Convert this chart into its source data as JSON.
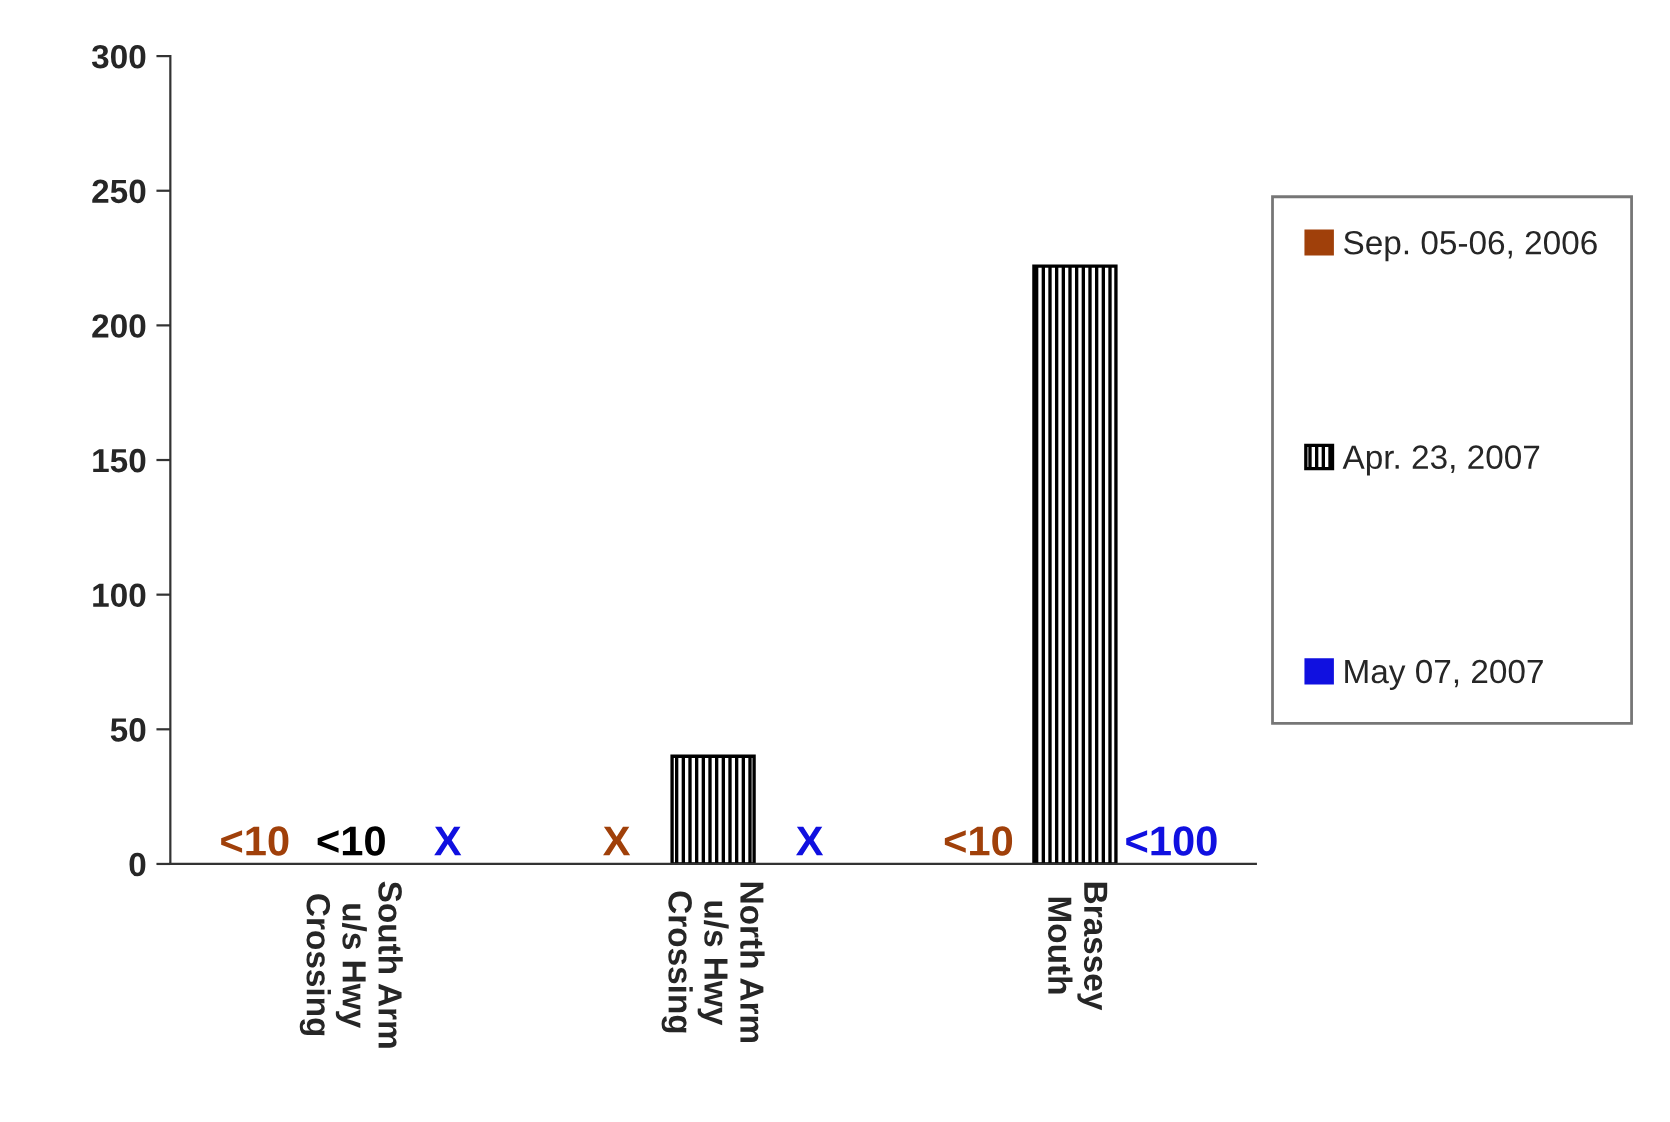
{
  "chart_data": {
    "type": "bar",
    "categories": [
      "South Arm\nu/s Hwy\nCrossing",
      "North Arm\nu/s Hwy\nCrossing",
      "Brassey\nMouth"
    ],
    "series": [
      {
        "name": "Sep. 05-06, 2006",
        "color": "#a0400a",
        "values": [
          null,
          null,
          null
        ],
        "value_labels": [
          "<10",
          "X",
          "<10"
        ]
      },
      {
        "name": "Apr. 23, 2007",
        "color": "#000000",
        "values": [
          null,
          40,
          222
        ],
        "value_labels": [
          "<10",
          null,
          null
        ]
      },
      {
        "name": "May 07, 2007",
        "color": "#1010e0",
        "values": [
          null,
          null,
          null
        ],
        "value_labels": [
          "X",
          "X",
          "<100"
        ]
      }
    ],
    "ylim": [
      0,
      300
    ],
    "yticks": [
      0,
      50,
      100,
      150,
      200,
      250,
      300
    ],
    "grid": false,
    "legend": "right"
  }
}
